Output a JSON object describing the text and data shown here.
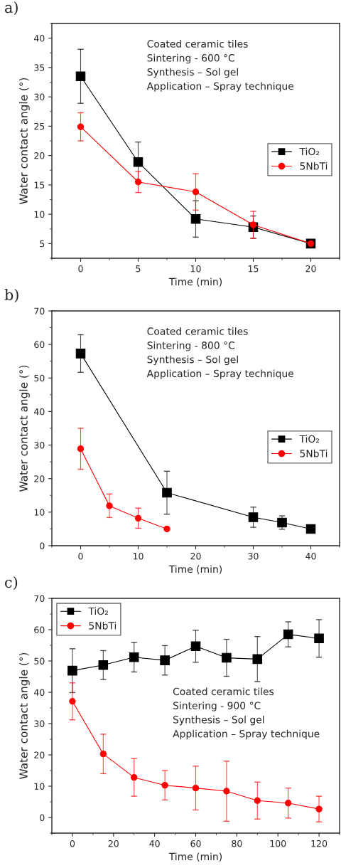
{
  "chart_data": [
    {
      "type": "line",
      "title": "a)",
      "xlabel": "Time (min)",
      "ylabel": "Water contact angle (°)",
      "x": [
        0,
        5,
        10,
        15,
        20
      ],
      "xlim": [
        -2.5,
        22.5
      ],
      "xticks": [
        0,
        5,
        10,
        15,
        20
      ],
      "ylim": [
        2.5,
        42.5
      ],
      "yticks": [
        5,
        10,
        15,
        20,
        25,
        30,
        35,
        40
      ],
      "grid": false,
      "legend": "right",
      "annotations": [
        "Coated ceramic tiles\nSintering - 600 °C\nSynthesis – Sol gel\nApplication – Spray technique"
      ],
      "series": [
        {
          "name": "TiO₂",
          "color": "#000000",
          "marker": "square",
          "values": [
            33.5,
            18.9,
            9.2,
            7.8,
            5.0
          ],
          "errors": [
            4.6,
            3.4,
            3.1,
            1.9,
            null
          ]
        },
        {
          "name": "5NbTi",
          "color": "#ff0000",
          "marker": "circle",
          "values": [
            24.9,
            15.5,
            13.8,
            8.2,
            5.0
          ],
          "errors": [
            2.4,
            1.8,
            3.1,
            2.3,
            null
          ]
        }
      ]
    },
    {
      "type": "line",
      "title": "b)",
      "xlabel": "Time (min)",
      "ylabel": "Water contact angle (°)",
      "xlim": [
        -5,
        45
      ],
      "xticks": [
        0,
        10,
        20,
        30,
        40
      ],
      "ylim": [
        0,
        70
      ],
      "yticks": [
        0,
        10,
        20,
        30,
        40,
        50,
        60,
        70
      ],
      "grid": false,
      "legend": "right",
      "annotations": [
        "Coated ceramic tiles\nSintering - 800 °C\nSynthesis – Sol gel\nApplication – Spray technique"
      ],
      "series": [
        {
          "name": "TiO₂",
          "color": "#000000",
          "marker": "square",
          "x": [
            0,
            15,
            30,
            35,
            40
          ],
          "values": [
            57.3,
            15.8,
            8.5,
            6.9,
            5.0
          ],
          "errors": [
            5.6,
            6.4,
            3.0,
            2.0,
            null
          ]
        },
        {
          "name": "5NbTi",
          "color": "#ff0000",
          "marker": "circle",
          "x": [
            0,
            5,
            10,
            15
          ],
          "values": [
            28.9,
            11.9,
            8.2,
            5.0
          ],
          "errors": [
            6.1,
            3.5,
            3.0,
            null
          ]
        }
      ]
    },
    {
      "type": "line",
      "title": "c)",
      "xlabel": "Time (min)",
      "ylabel": "Water contact angle (°)",
      "x": [
        0,
        15,
        30,
        45,
        60,
        75,
        90,
        105,
        120
      ],
      "xlim": [
        -10,
        130
      ],
      "xticks": [
        0,
        20,
        40,
        60,
        80,
        100,
        120
      ],
      "ylim": [
        -5,
        70
      ],
      "yticks": [
        0,
        10,
        20,
        30,
        40,
        50,
        60,
        70
      ],
      "grid": false,
      "legend": "top left",
      "annotations": [
        "Coated ceramic tiles\nSintering - 900 °C\nSynthesis – Sol gel\nApplication – Spray technique"
      ],
      "series": [
        {
          "name": "TiO₂",
          "color": "#000000",
          "marker": "square",
          "values": [
            46.9,
            48.7,
            51.2,
            50.2,
            54.7,
            51.0,
            50.6,
            58.5,
            57.2
          ],
          "errors": [
            7.0,
            4.6,
            4.7,
            4.7,
            5.1,
            5.9,
            7.2,
            4.0,
            6.0
          ]
        },
        {
          "name": "5NbTi",
          "color": "#ff0000",
          "marker": "circle",
          "values": [
            37.1,
            20.3,
            12.8,
            10.3,
            9.4,
            8.4,
            5.4,
            4.6,
            2.7
          ],
          "errors": [
            5.9,
            6.3,
            6.0,
            4.7,
            7.0,
            9.6,
            5.9,
            4.8,
            4.1
          ]
        }
      ]
    }
  ]
}
